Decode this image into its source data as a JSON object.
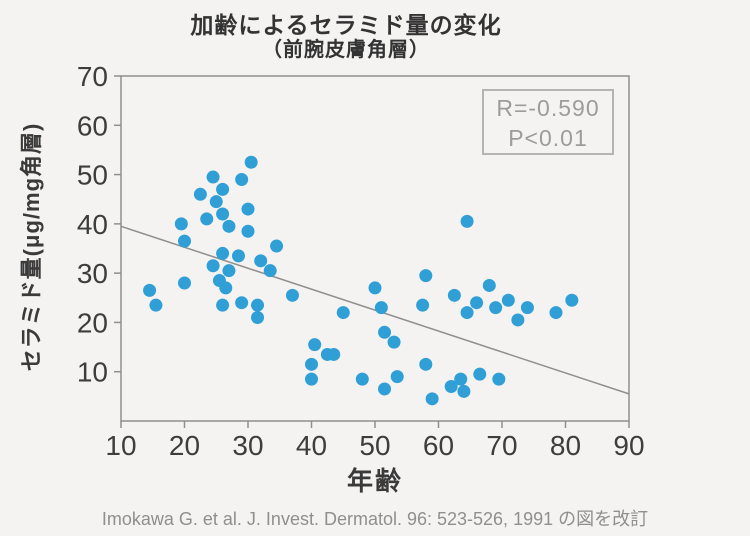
{
  "page": {
    "title": "加齢によるセラミド量の変化",
    "subtitle": "（前腕皮膚角層）",
    "footer": "Imokawa G. et al. J. Invest. Dermatol. 96: 523-526, 1991 の図を改訂"
  },
  "chart_data": {
    "type": "scatter",
    "title": "加齢によるセラミド量の変化（前腕皮膚角層）",
    "xlabel": "年齢",
    "ylabel": "セラミド量(μg/mg角層)",
    "xlim": [
      10,
      90
    ],
    "ylim": [
      0,
      70
    ],
    "x_ticks": [
      10,
      20,
      30,
      40,
      50,
      60,
      70,
      80,
      90
    ],
    "y_ticks": [
      10,
      20,
      30,
      40,
      50,
      60,
      70
    ],
    "grid": false,
    "legend": null,
    "annotation": {
      "lines": [
        "R=-0.590",
        "P<0.01"
      ]
    },
    "trend_line": {
      "x1": 10,
      "y1": 39.5,
      "x2": 90,
      "y2": 5.5
    },
    "points": [
      [
        14.5,
        26.5
      ],
      [
        15.5,
        23.5
      ],
      [
        19.5,
        40
      ],
      [
        20,
        36.5
      ],
      [
        20,
        28
      ],
      [
        22.5,
        46
      ],
      [
        23.5,
        41
      ],
      [
        24.5,
        49.5
      ],
      [
        25,
        44.5
      ],
      [
        26,
        47
      ],
      [
        26,
        42
      ],
      [
        27,
        39.5
      ],
      [
        24.5,
        31.5
      ],
      [
        26,
        34
      ],
      [
        27,
        30.5
      ],
      [
        25.5,
        28.5
      ],
      [
        26.5,
        27
      ],
      [
        28.5,
        33.5
      ],
      [
        29,
        49
      ],
      [
        30,
        43
      ],
      [
        30.5,
        52.5
      ],
      [
        30,
        38.5
      ],
      [
        32,
        32.5
      ],
      [
        33.5,
        30.5
      ],
      [
        34.5,
        35.5
      ],
      [
        26,
        23.5
      ],
      [
        29,
        24
      ],
      [
        31.5,
        23.5
      ],
      [
        31.5,
        21
      ],
      [
        37,
        25.5
      ],
      [
        40.5,
        15.5
      ],
      [
        42.5,
        13.5
      ],
      [
        43.5,
        13.5
      ],
      [
        40,
        11.5
      ],
      [
        40,
        8.5
      ],
      [
        45,
        22
      ],
      [
        48,
        8.5
      ],
      [
        50,
        27
      ],
      [
        51,
        23
      ],
      [
        51.5,
        18
      ],
      [
        53,
        16
      ],
      [
        51.5,
        6.5
      ],
      [
        53.5,
        9
      ],
      [
        57.5,
        23.5
      ],
      [
        58,
        29.5
      ],
      [
        58,
        11.5
      ],
      [
        59,
        4.5
      ],
      [
        62,
        7
      ],
      [
        62.5,
        25.5
      ],
      [
        63.5,
        8.5
      ],
      [
        64,
        6
      ],
      [
        64.5,
        22
      ],
      [
        64.5,
        40.5
      ],
      [
        66,
        24
      ],
      [
        66.5,
        9.5
      ],
      [
        68,
        27.5
      ],
      [
        69,
        23
      ],
      [
        69.5,
        8.5
      ],
      [
        71,
        24.5
      ],
      [
        72.5,
        20.5
      ],
      [
        74,
        23
      ],
      [
        78.5,
        22
      ],
      [
        81,
        24.5
      ]
    ],
    "colors": {
      "point": "#2f9fd6",
      "trend": "#8f8f8f",
      "axis": "#8f8f8f",
      "tick_label": "#3d3d3d",
      "annotation_text": "#9c9c9c",
      "annotation_border": "#b3b3b3"
    }
  }
}
